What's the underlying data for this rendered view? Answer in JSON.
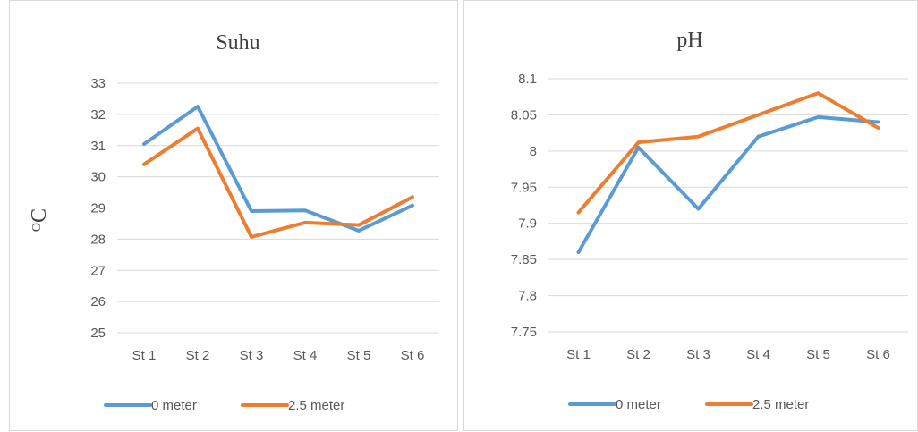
{
  "colors": {
    "series_0": "#5b9bd5",
    "series_1": "#ed7d31",
    "grid": "#d9d9d9",
    "text": "#595959"
  },
  "chart_data": [
    {
      "type": "line",
      "title": "Suhu",
      "xlabel": "",
      "ylabel": "OC",
      "categories": [
        "St 1",
        "St 2",
        "St 3",
        "St 4",
        "St 5",
        "St 6"
      ],
      "ylim": [
        25,
        33
      ],
      "yticks": [
        "25",
        "26",
        "27",
        "28",
        "29",
        "30",
        "31",
        "32",
        "33"
      ],
      "grid": true,
      "legend": "bottom",
      "series": [
        {
          "name": "0 meter",
          "values": [
            31.05,
            32.25,
            28.9,
            28.92,
            28.27,
            29.08
          ]
        },
        {
          "name": "2.5 meter",
          "values": [
            30.4,
            31.55,
            28.07,
            28.53,
            28.45,
            29.35
          ]
        }
      ]
    },
    {
      "type": "line",
      "title": "pH",
      "xlabel": "",
      "ylabel": "",
      "categories": [
        "St 1",
        "St 2",
        "St 3",
        "St 4",
        "St 5",
        "St 6"
      ],
      "ylim": [
        7.75,
        8.1
      ],
      "yticks": [
        "7.75",
        "7.8",
        "7.85",
        "7.9",
        "7.95",
        "8",
        "8.05",
        "8.1"
      ],
      "grid": true,
      "legend": "bottom",
      "series": [
        {
          "name": "0 meter",
          "values": [
            7.86,
            8.005,
            7.92,
            8.02,
            8.047,
            8.04
          ]
        },
        {
          "name": "2.5 meter",
          "values": [
            7.915,
            8.012,
            8.02,
            8.05,
            8.08,
            8.032
          ]
        }
      ]
    }
  ]
}
